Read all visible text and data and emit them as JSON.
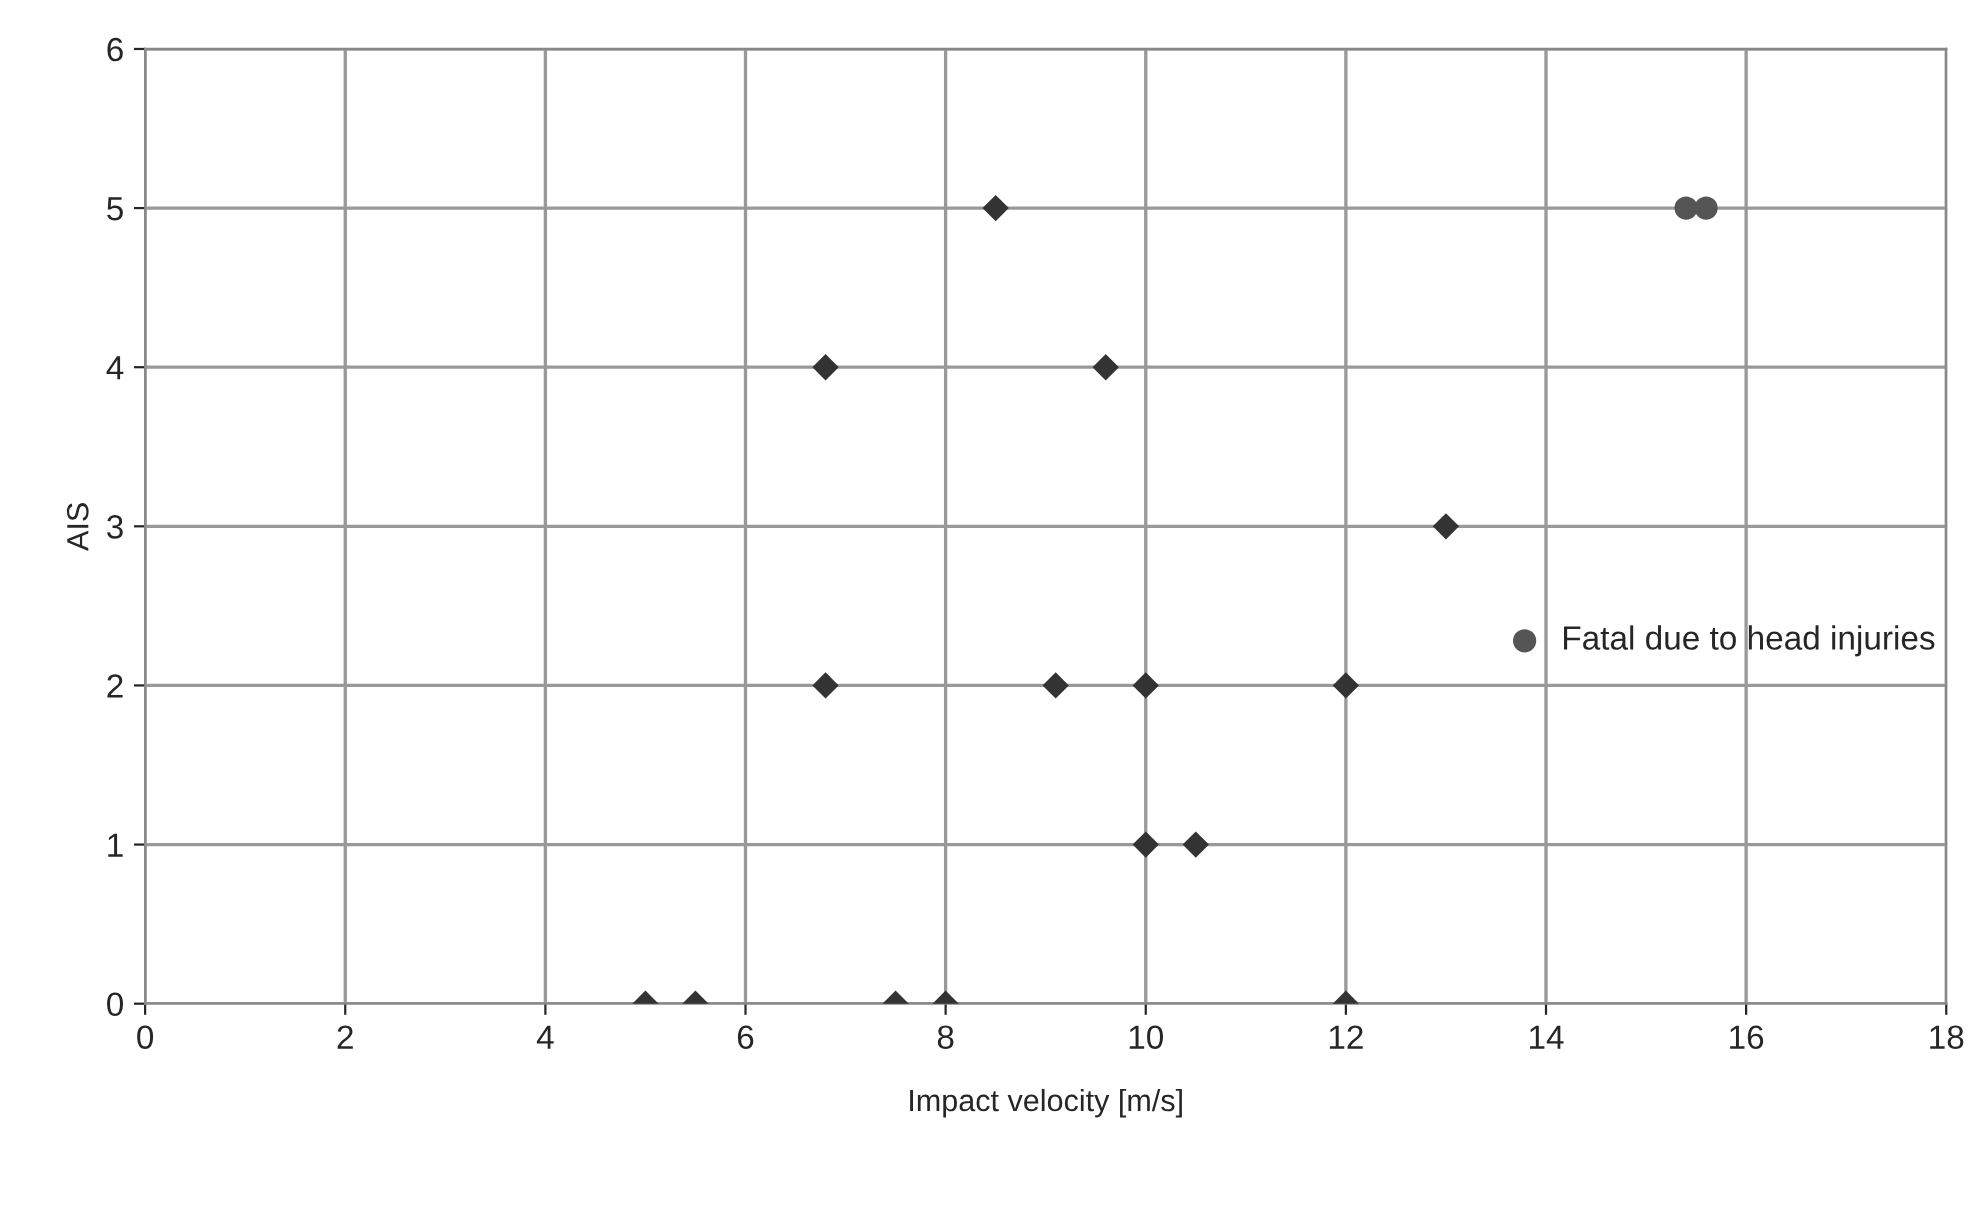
{
  "chart_data": {
    "type": "scatter",
    "xlabel": "Impact velocity [m/s]",
    "ylabel": "AIS",
    "xlim": [
      0,
      18
    ],
    "xticks": [
      0,
      2,
      4,
      6,
      8,
      10,
      12,
      14,
      16,
      18
    ],
    "ylim": [
      0,
      6
    ],
    "yticks": [
      0,
      1,
      2,
      3,
      4,
      5,
      6
    ],
    "grid": true,
    "legend": "right",
    "series": [
      {
        "color": "#333333",
        "marker": "diamond",
        "x": [
          5.0,
          5.5,
          7.5,
          8.0,
          12.0,
          6.8,
          6.8,
          9.1,
          10.0,
          12.0,
          8.5,
          9.6,
          13.0,
          10.0,
          10.5
        ],
        "values": [
          0,
          0,
          0,
          0,
          0,
          4,
          2,
          2,
          2,
          2,
          5,
          4,
          3,
          1,
          1
        ]
      },
      {
        "name": "Fatal due to head injuries",
        "color": "#555555",
        "marker": "circle",
        "x": [
          15.4,
          15.6
        ],
        "values": [
          5,
          5
        ]
      }
    ]
  }
}
